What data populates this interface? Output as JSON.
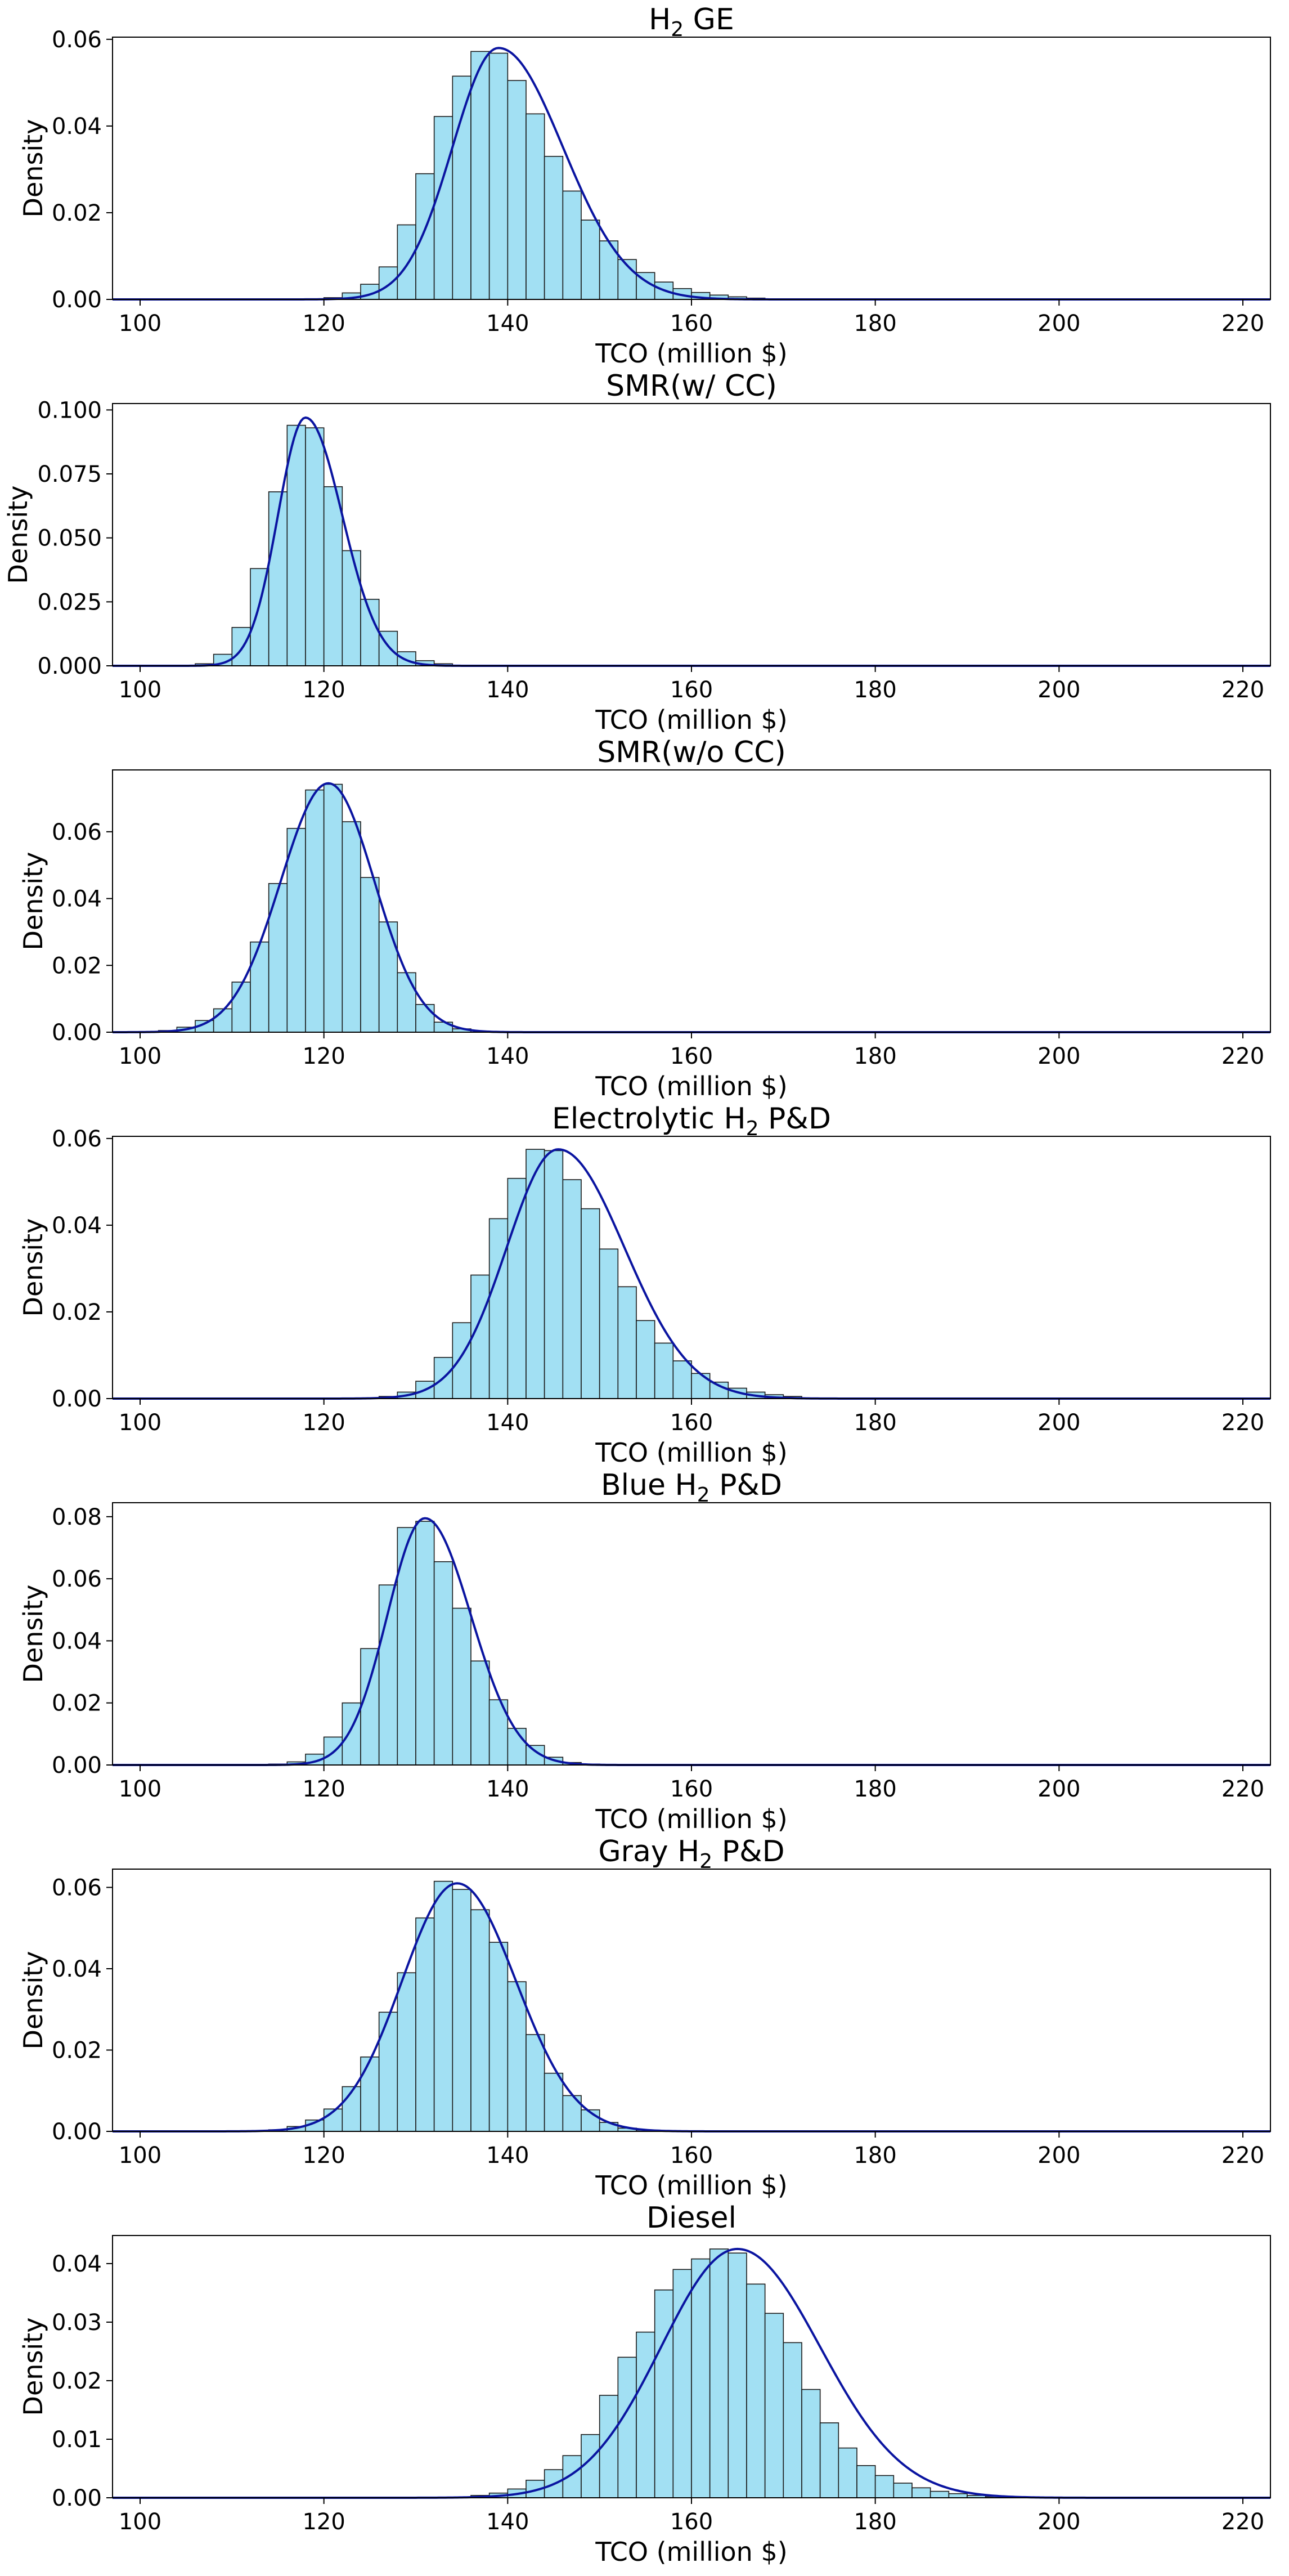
{
  "style": {
    "bar_fill": "#a2e0f3",
    "bar_edge": "#1a1a1a",
    "kde_color": "#0a14a0",
    "axis_color": "#000000"
  },
  "chart_data": [
    {
      "type": "bar",
      "title": "H2 GE",
      "title_main": "H",
      "title_sub": "2",
      "title_rest": " GE",
      "xlabel": "TCO (million $)",
      "ylabel": "Density",
      "xlim": [
        97,
        223
      ],
      "ylim": [
        0,
        0.0605
      ],
      "xticks": [
        100,
        120,
        140,
        160,
        180,
        200,
        220
      ],
      "yticks": [
        0.0,
        0.02,
        0.04,
        0.06
      ],
      "ytick_labels": [
        "0.00",
        "0.02",
        "0.04",
        "0.06"
      ],
      "bin_width": 2,
      "bin_start": 120,
      "values": [
        0.0004,
        0.0015,
        0.0035,
        0.0075,
        0.0172,
        0.029,
        0.0422,
        0.0515,
        0.0572,
        0.0568,
        0.0505,
        0.0428,
        0.033,
        0.025,
        0.0183,
        0.0135,
        0.0092,
        0.0062,
        0.004,
        0.0025,
        0.0016,
        0.001,
        0.0006,
        0.0003
      ],
      "kde": {
        "peak": 139,
        "height": 0.058,
        "sigma_left": 5.0,
        "sigma_right": 7.0
      }
    },
    {
      "type": "bar",
      "title": "SMR(w/ CC)",
      "title_main": "SMR(w/ CC)",
      "title_sub": "",
      "title_rest": "",
      "xlabel": "TCO (million $)",
      "ylabel": "Density",
      "xlim": [
        97,
        223
      ],
      "ylim": [
        0,
        0.1025
      ],
      "xticks": [
        100,
        120,
        140,
        160,
        180,
        200,
        220
      ],
      "yticks": [
        0.0,
        0.025,
        0.05,
        0.075,
        0.1
      ],
      "ytick_labels": [
        "0.000",
        "0.025",
        "0.050",
        "0.075",
        "0.100"
      ],
      "bin_width": 2,
      "bin_start": 106,
      "values": [
        0.0008,
        0.0045,
        0.015,
        0.038,
        0.068,
        0.094,
        0.093,
        0.07,
        0.045,
        0.026,
        0.0135,
        0.0055,
        0.002,
        0.0008
      ],
      "kde": {
        "peak": 118,
        "height": 0.097,
        "sigma_left": 3.0,
        "sigma_right": 4.0
      }
    },
    {
      "type": "bar",
      "title": "SMR(w/o CC)",
      "title_main": "SMR(w/o CC)",
      "title_sub": "",
      "title_rest": "",
      "xlabel": "TCO (million $)",
      "ylabel": "Density",
      "xlim": [
        97,
        223
      ],
      "ylim": [
        0,
        0.0785
      ],
      "xticks": [
        100,
        120,
        140,
        160,
        180,
        200,
        220
      ],
      "yticks": [
        0.0,
        0.02,
        0.04,
        0.06
      ],
      "ytick_labels": [
        "0.00",
        "0.02",
        "0.04",
        "0.06"
      ],
      "bin_width": 2,
      "bin_start": 102,
      "values": [
        0.0005,
        0.0015,
        0.0035,
        0.007,
        0.015,
        0.027,
        0.0445,
        0.061,
        0.0725,
        0.0742,
        0.063,
        0.0463,
        0.033,
        0.0178,
        0.0083,
        0.003,
        0.001
      ],
      "kde": {
        "peak": 120.5,
        "height": 0.0745,
        "sigma_left": 5.2,
        "sigma_right": 5.0
      }
    },
    {
      "type": "bar",
      "title": "Electrolytic H2 P&D",
      "title_main": "Electrolytic H",
      "title_sub": "2",
      "title_rest": " P&D",
      "xlabel": "TCO (million $)",
      "ylabel": "Density",
      "xlim": [
        97,
        223
      ],
      "ylim": [
        0,
        0.0605
      ],
      "xticks": [
        100,
        120,
        140,
        160,
        180,
        200,
        220
      ],
      "yticks": [
        0.0,
        0.02,
        0.04,
        0.06
      ],
      "ytick_labels": [
        "0.00",
        "0.02",
        "0.04",
        "0.06"
      ],
      "bin_width": 2,
      "bin_start": 126,
      "values": [
        0.0005,
        0.0015,
        0.004,
        0.0095,
        0.0175,
        0.0285,
        0.0415,
        0.0508,
        0.0575,
        0.0572,
        0.0505,
        0.0438,
        0.0345,
        0.0258,
        0.018,
        0.0128,
        0.0087,
        0.0058,
        0.0038,
        0.0024,
        0.0015,
        0.0009,
        0.0005
      ],
      "kde": {
        "peak": 145.5,
        "height": 0.0575,
        "sigma_left": 5.6,
        "sigma_right": 7.2
      }
    },
    {
      "type": "bar",
      "title": "Blue H2 P&D",
      "title_main": "Blue H",
      "title_sub": "2",
      "title_rest": " P&D",
      "xlabel": "TCO (million $)",
      "ylabel": "Density",
      "xlim": [
        97,
        223
      ],
      "ylim": [
        0,
        0.0845
      ],
      "xticks": [
        100,
        120,
        140,
        160,
        180,
        200,
        220
      ],
      "yticks": [
        0.0,
        0.02,
        0.04,
        0.06,
        0.08
      ],
      "ytick_labels": [
        "0.00",
        "0.02",
        "0.04",
        "0.06",
        "0.08"
      ],
      "bin_width": 2,
      "bin_start": 114,
      "values": [
        0.0003,
        0.001,
        0.0035,
        0.009,
        0.02,
        0.0375,
        0.058,
        0.0765,
        0.0785,
        0.0655,
        0.0505,
        0.0335,
        0.021,
        0.0118,
        0.0063,
        0.0025,
        0.0008,
        0.0003
      ],
      "kde": {
        "peak": 131,
        "height": 0.0795,
        "sigma_left": 4.1,
        "sigma_right": 5.0
      }
    },
    {
      "type": "bar",
      "title": "Gray H2 P&D",
      "title_main": "Gray H",
      "title_sub": "2",
      "title_rest": " P&D",
      "xlabel": "TCO (million $)",
      "ylabel": "Density",
      "xlim": [
        97,
        223
      ],
      "ylim": [
        0,
        0.0645
      ],
      "xticks": [
        100,
        120,
        140,
        160,
        180,
        200,
        220
      ],
      "yticks": [
        0.0,
        0.02,
        0.04,
        0.06
      ],
      "ytick_labels": [
        "0.00",
        "0.02",
        "0.04",
        "0.06"
      ],
      "bin_width": 2,
      "bin_start": 114,
      "values": [
        0.0004,
        0.0012,
        0.0028,
        0.0055,
        0.011,
        0.0183,
        0.0293,
        0.039,
        0.0525,
        0.0615,
        0.0595,
        0.0545,
        0.0465,
        0.0368,
        0.0238,
        0.0143,
        0.0088,
        0.0053,
        0.0022,
        0.0008,
        0.0003
      ],
      "kde": {
        "peak": 134.5,
        "height": 0.061,
        "sigma_left": 6.0,
        "sigma_right": 6.4
      }
    },
    {
      "type": "bar",
      "title": "Diesel",
      "title_main": "Diesel",
      "title_sub": "",
      "title_rest": "",
      "xlabel": "TCO (million $)",
      "ylabel": "Density",
      "xlim": [
        97,
        223
      ],
      "ylim": [
        0,
        0.0448
      ],
      "xticks": [
        100,
        120,
        140,
        160,
        180,
        200,
        220
      ],
      "yticks": [
        0.0,
        0.01,
        0.02,
        0.03,
        0.04
      ],
      "ytick_labels": [
        "0.00",
        "0.01",
        "0.02",
        "0.03",
        "0.04"
      ],
      "bin_width": 2,
      "bin_start": 136,
      "values": [
        0.0004,
        0.0008,
        0.0015,
        0.003,
        0.0048,
        0.0072,
        0.0108,
        0.0175,
        0.024,
        0.0283,
        0.0355,
        0.039,
        0.0408,
        0.0425,
        0.0418,
        0.0365,
        0.0315,
        0.0265,
        0.0185,
        0.0128,
        0.0085,
        0.0055,
        0.0038,
        0.0025,
        0.0017,
        0.0011,
        0.0007,
        0.0004,
        0.0002
      ],
      "kde": {
        "peak": 165,
        "height": 0.0425,
        "sigma_left": 8.3,
        "sigma_right": 9.0
      }
    }
  ]
}
